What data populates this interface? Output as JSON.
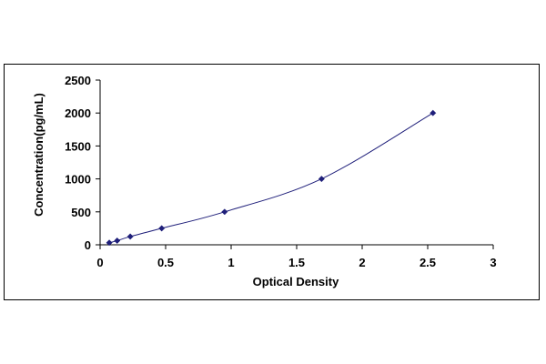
{
  "chart_data": {
    "type": "scatter",
    "title": "",
    "xlabel": "Optical Density",
    "ylabel": "Concentration(pg/mL)",
    "xlim": [
      0,
      3
    ],
    "ylim": [
      0,
      2500
    ],
    "x_ticks": [
      0,
      0.5,
      1,
      1.5,
      2,
      2.5,
      3
    ],
    "x_tick_labels": [
      "0",
      "0.5",
      "1",
      "1.5",
      "2",
      "2.5",
      "3"
    ],
    "y_ticks": [
      0,
      500,
      1000,
      1500,
      2000,
      2500
    ],
    "y_tick_labels": [
      "0",
      "500",
      "1000",
      "1500",
      "2000",
      "2500"
    ],
    "grid": false,
    "legend": "none",
    "trendline": "smooth curve",
    "series": [
      {
        "x": [
          0.07,
          0.13,
          0.23,
          0.47,
          0.95,
          1.69,
          2.54
        ],
        "y": [
          31.2,
          62.5,
          125,
          250,
          500,
          1000,
          2000
        ],
        "marker_color": "#1f1f7a",
        "line_color": "#1f1f7a"
      }
    ]
  }
}
